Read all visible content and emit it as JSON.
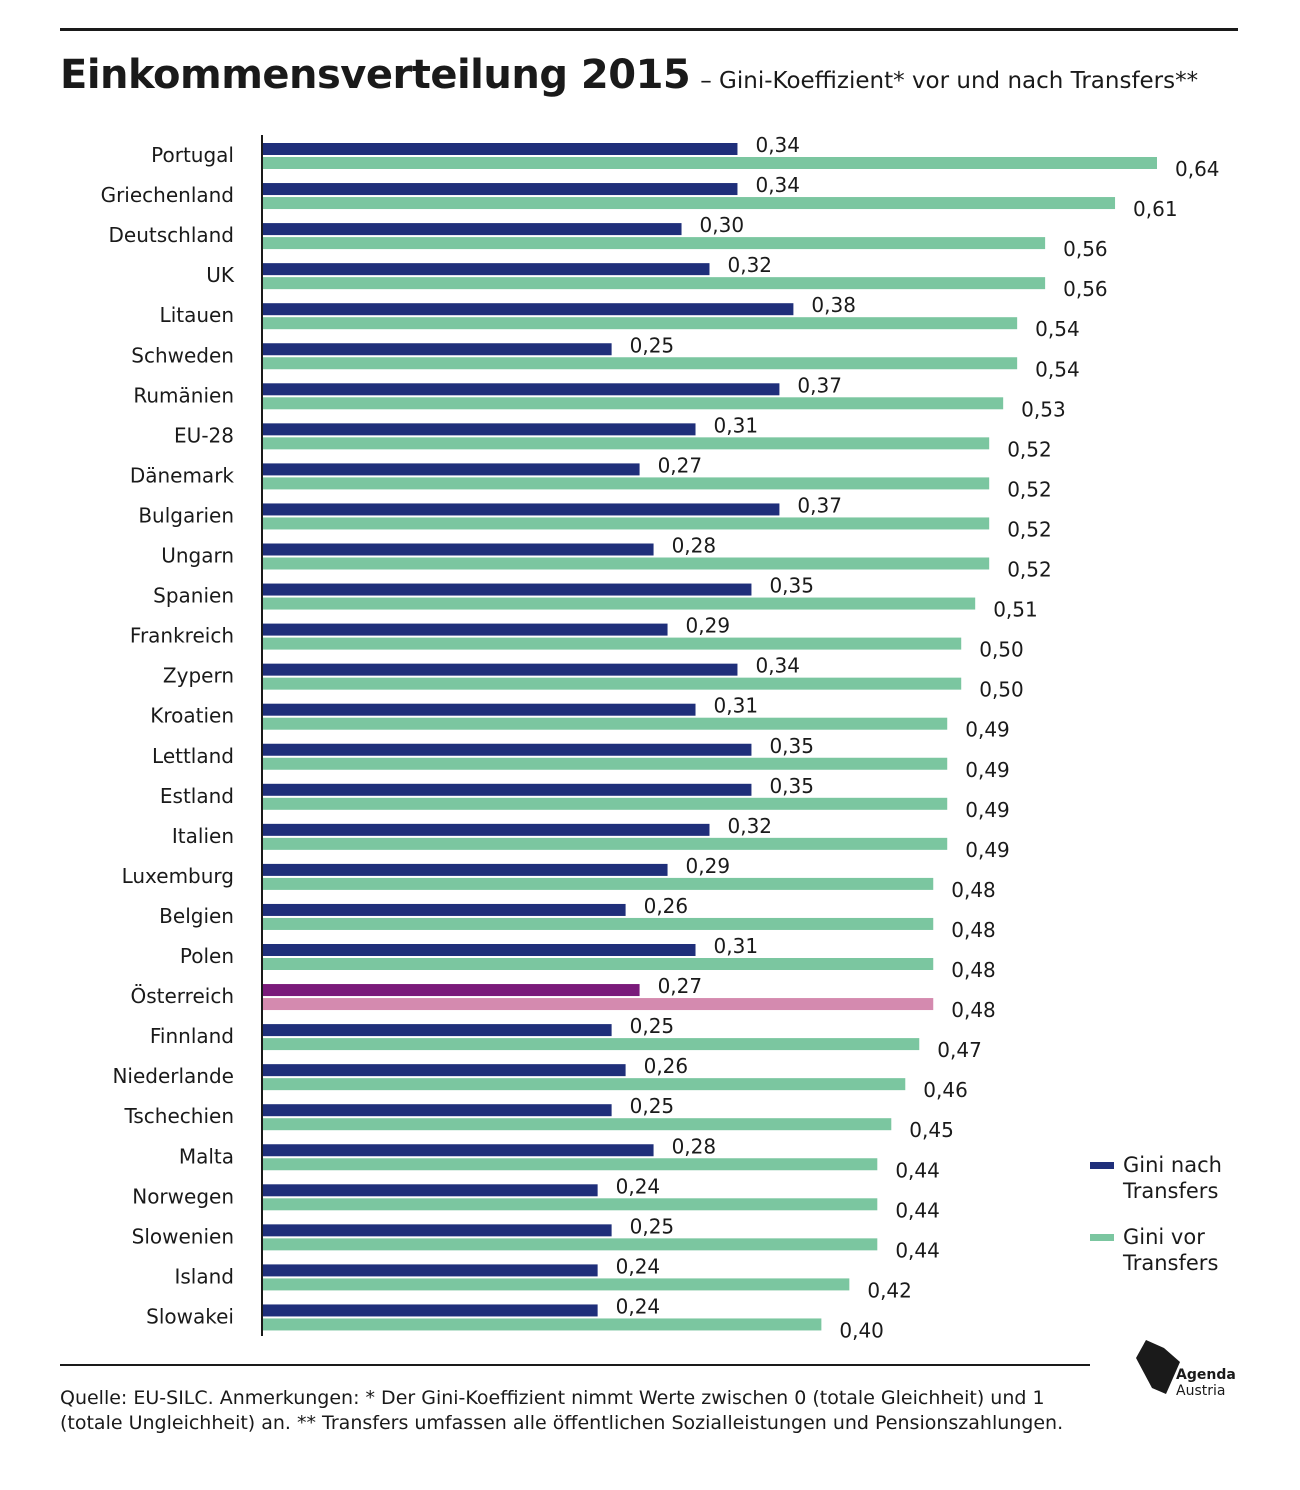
{
  "header": {
    "title": "Einkommensverteilung 2015",
    "subtitle": "– Gini-Koeffizient* vor und nach Transfers**"
  },
  "colors": {
    "after": "#1f2f7a",
    "before": "#7bc6a0",
    "highlight_after": "#7a1a7a",
    "highlight_before": "#d48aaf"
  },
  "highlight_category": "Österreich",
  "chart_data": {
    "type": "bar",
    "orientation": "horizontal",
    "xlim": [
      0,
      0.64
    ],
    "categories": [
      "Portugal",
      "Griechenland",
      "Deutschland",
      "UK",
      "Litauen",
      "Schweden",
      "Rumänien",
      "EU-28",
      "Dänemark",
      "Bulgarien",
      "Ungarn",
      "Spanien",
      "Frankreich",
      "Zypern",
      "Kroatien",
      "Lettland",
      "Estland",
      "Italien",
      "Luxemburg",
      "Belgien",
      "Polen",
      "Österreich",
      "Finnland",
      "Niederlande",
      "Tschechien",
      "Malta",
      "Norwegen",
      "Slowenien",
      "Island",
      "Slowakei"
    ],
    "series": [
      {
        "name": "Gini nach Transfers",
        "values": [
          0.34,
          0.34,
          0.3,
          0.32,
          0.38,
          0.25,
          0.37,
          0.31,
          0.27,
          0.37,
          0.28,
          0.35,
          0.29,
          0.34,
          0.31,
          0.35,
          0.35,
          0.32,
          0.29,
          0.26,
          0.31,
          0.27,
          0.25,
          0.26,
          0.25,
          0.28,
          0.24,
          0.25,
          0.24,
          0.24
        ],
        "labels": [
          "0,34",
          "0,34",
          "0,30",
          "0,32",
          "0,38",
          "0,25",
          "0,37",
          "0,31",
          "0,27",
          "0,37",
          "0,28",
          "0,35",
          "0,29",
          "0,34",
          "0,31",
          "0,35",
          "0,35",
          "0,32",
          "0,29",
          "0,26",
          "0,31",
          "0,27",
          "0,25",
          "0,26",
          "0,25",
          "0,28",
          "0,24",
          "0,25",
          "0,24",
          "0,24"
        ]
      },
      {
        "name": "Gini vor Transfers",
        "values": [
          0.64,
          0.61,
          0.56,
          0.56,
          0.54,
          0.54,
          0.53,
          0.52,
          0.52,
          0.52,
          0.52,
          0.51,
          0.5,
          0.5,
          0.49,
          0.49,
          0.49,
          0.49,
          0.48,
          0.48,
          0.48,
          0.48,
          0.47,
          0.46,
          0.45,
          0.44,
          0.44,
          0.44,
          0.42,
          0.4
        ],
        "labels": [
          "0,64",
          "0,61",
          "0,56",
          "0,56",
          "0,54",
          "0,54",
          "0,53",
          "0,52",
          "0,52",
          "0,52",
          "0,52",
          "0,51",
          "0,50",
          "0,50",
          "0,49",
          "0,49",
          "0,49",
          "0,49",
          "0,48",
          "0,48",
          "0,48",
          "0,48",
          "0,47",
          "0,46",
          "0,45",
          "0,44",
          "0,44",
          "0,44",
          "0,42",
          "0,40"
        ]
      }
    ],
    "legend": "right"
  },
  "legend": {
    "after_label": "Gini nach Transfers",
    "before_label": "Gini vor Transfers"
  },
  "footnote": "Quelle: EU-SILC.  Anmerkungen: * Der Gini-Koeffizient nimmt Werte zwischen 0 (totale Gleichheit) und 1 (totale Ungleichheit) an.  ** Transfers umfassen alle öffentlichen Sozialleistungen und Pensionszahlungen.",
  "logo": {
    "line1": "Agenda",
    "line2": "Austria"
  }
}
